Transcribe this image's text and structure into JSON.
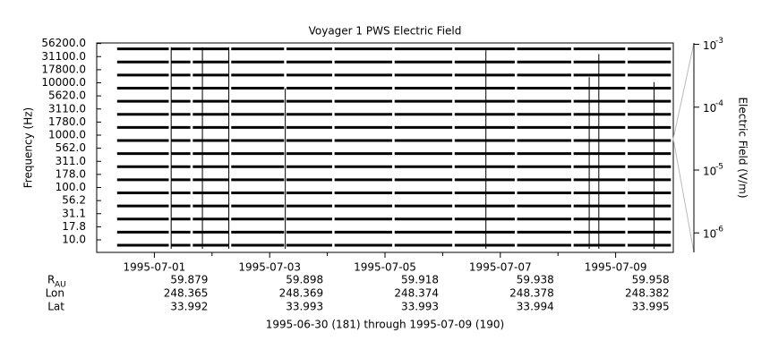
{
  "chart_data": {
    "type": "channel-traces",
    "title": "Voyager 1 PWS Electric Field",
    "ylabel": "Frequency (Hz)",
    "y2label": "Electric Field (V/m)",
    "channels": [
      "10.0",
      "17.8",
      "31.1",
      "56.2",
      "100.0",
      "178.0",
      "311.0",
      "562.0",
      "1000.0",
      "1780.0",
      "3110.0",
      "5620.0",
      "10000.0",
      "17800.0",
      "31100.0",
      "56200.0"
    ],
    "xlim": [
      "1995-06-30",
      "1995-07-10"
    ],
    "xticks": [
      "1995-07-01",
      "1995-07-03",
      "1995-07-05",
      "1995-07-07",
      "1995-07-09"
    ],
    "xminorticks": [
      "1995-07-02",
      "1995-07-04",
      "1995-07-06",
      "1995-07-08"
    ],
    "coverage": [
      [
        "1995-06-30T08:30",
        "1995-07-01T06:00"
      ],
      [
        "1995-07-01T07:00",
        "1995-07-01T15:00"
      ],
      [
        "1995-07-01T16:00",
        "1995-07-02T07:00"
      ],
      [
        "1995-07-02T08:00",
        "1995-07-03T06:00"
      ],
      [
        "1995-07-03T07:00",
        "1995-07-04T02:00"
      ],
      [
        "1995-07-04T03:00",
        "1995-07-05T03:00"
      ],
      [
        "1995-07-05T04:00",
        "1995-07-06T04:00"
      ],
      [
        "1995-07-06T05:00",
        "1995-07-07T06:00"
      ],
      [
        "1995-07-07T07:00",
        "1995-07-08T05:30"
      ],
      [
        "1995-07-08T06:30",
        "1995-07-09T04:00"
      ],
      [
        "1995-07-09T05:00",
        "1995-07-09T23:00"
      ]
    ],
    "bursts": {
      "x": [
        "1995-07-01T07:00",
        "1995-07-01T20:00",
        "1995-07-02T07:00",
        "1995-07-03T06:30",
        "1995-07-06T18:00",
        "1995-07-08T13:00",
        "1995-07-08T17:00",
        "1995-07-09T16:00"
      ],
      "values": [
        0.0009,
        0.0009,
        0.0009,
        0.0002,
        0.0008,
        0.0003,
        0.0007,
        0.00025
      ]
    },
    "y2log": true,
    "y2lim": [
      4.9e-07,
      0.00105
    ],
    "y2ticks": [
      {
        "value": 0.001,
        "label": "10",
        "exponent": "-3"
      },
      {
        "value": 0.0001,
        "label": "10",
        "exponent": "-4"
      },
      {
        "value": 1e-05,
        "label": "10",
        "exponent": "-5"
      },
      {
        "value": 1e-06,
        "label": "10",
        "exponent": "-6"
      }
    ],
    "color": "#000000",
    "ephemeris": {
      "rows": [
        {
          "label": "R",
          "subscript": "AU",
          "values": [
            "59.879",
            "59.898",
            "59.918",
            "59.938",
            "59.958"
          ]
        },
        {
          "label": "Lon",
          "values": [
            "248.365",
            "248.369",
            "248.374",
            "248.378",
            "248.382"
          ]
        },
        {
          "label": "Lat",
          "values": [
            "33.992",
            "33.993",
            "33.993",
            "33.994",
            "33.995"
          ]
        }
      ]
    },
    "footer": "1995-06-30 (181) through 1995-07-09 (190)"
  }
}
